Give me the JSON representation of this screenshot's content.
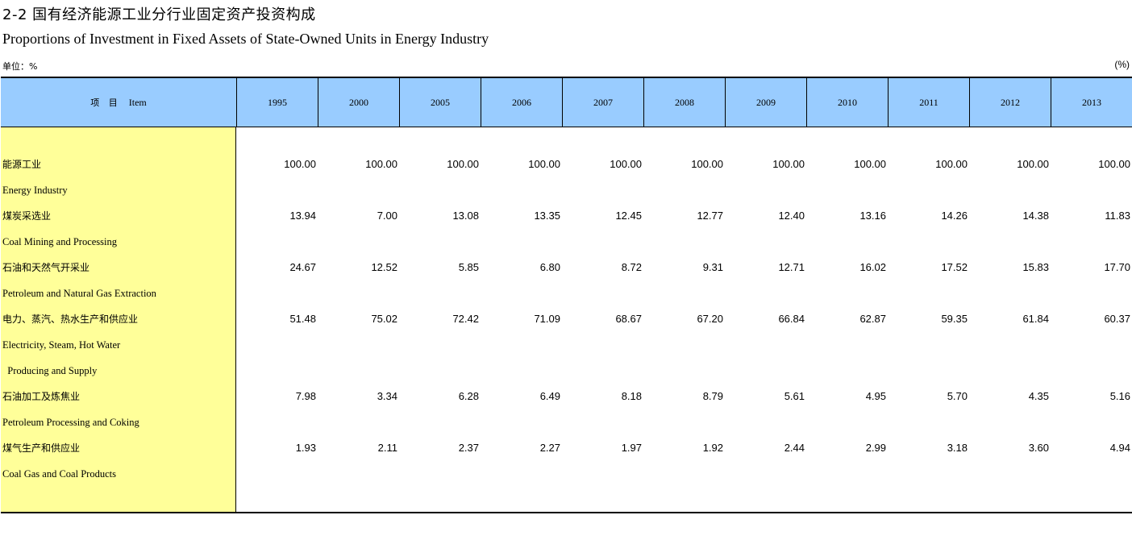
{
  "title": {
    "cn": "2-2   国有经济能源工业分行业固定资产投资构成",
    "en": "Proportions of Investment in Fixed Assets of State-Owned Units in Energy Industry"
  },
  "unit": {
    "left": "单位：%",
    "right": "(%)"
  },
  "header": {
    "item_cn": "项 目",
    "item_en": "Item",
    "years": [
      "1995",
      "2000",
      "2005",
      "2006",
      "2007",
      "2008",
      "2009",
      "2010",
      "2011",
      "2012",
      "2013"
    ]
  },
  "rows": [
    {
      "cn": "能源工业",
      "en": [
        "Energy Industry"
      ],
      "values": [
        "100.00",
        "100.00",
        "100.00",
        "100.00",
        "100.00",
        "100.00",
        "100.00",
        "100.00",
        "100.00",
        "100.00",
        "100.00"
      ]
    },
    {
      "cn": "煤炭采选业",
      "en": [
        "Coal Mining and Processing"
      ],
      "values": [
        "13.94",
        "7.00",
        "13.08",
        "13.35",
        "12.45",
        "12.77",
        "12.40",
        "13.16",
        "14.26",
        "14.38",
        "11.83"
      ]
    },
    {
      "cn": "石油和天然气开采业",
      "en": [
        "Petroleum and Natural Gas Extraction"
      ],
      "values": [
        "24.67",
        "12.52",
        "5.85",
        "6.80",
        "8.72",
        "9.31",
        "12.71",
        "16.02",
        "17.52",
        "15.83",
        "17.70"
      ]
    },
    {
      "cn": "电力、蒸汽、热水生产和供应业",
      "en": [
        "Electricity, Steam, Hot Water",
        "  Producing and Supply"
      ],
      "values": [
        "51.48",
        "75.02",
        "72.42",
        "71.09",
        "68.67",
        "67.20",
        "66.84",
        "62.87",
        "59.35",
        "61.84",
        "60.37"
      ]
    },
    {
      "cn": "石油加工及炼焦业",
      "en": [
        "Petroleum Processing and Coking"
      ],
      "values": [
        "7.98",
        "3.34",
        "6.28",
        "6.49",
        "8.18",
        "8.79",
        "5.61",
        "4.95",
        "5.70",
        "4.35",
        "5.16"
      ]
    },
    {
      "cn": "煤气生产和供应业",
      "en": [
        "Coal Gas and Coal Products"
      ],
      "values": [
        "1.93",
        "2.11",
        "2.37",
        "2.27",
        "1.97",
        "1.92",
        "2.44",
        "2.99",
        "3.18",
        "3.60",
        "4.94"
      ]
    }
  ]
}
